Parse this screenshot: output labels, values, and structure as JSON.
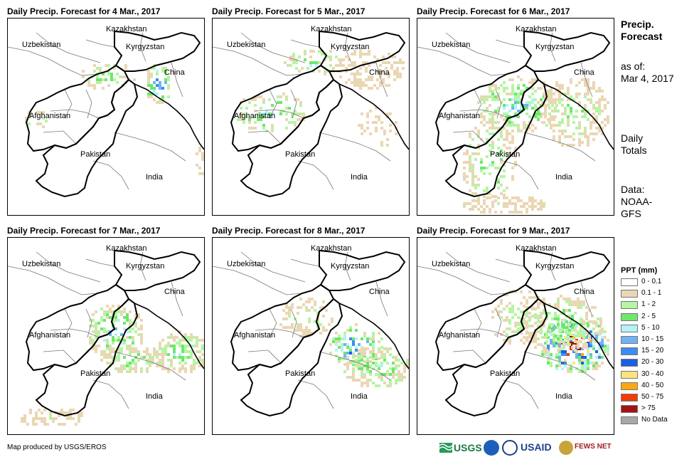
{
  "panels": [
    {
      "title": "Daily Precip. Forecast for 4 Mar., 2017"
    },
    {
      "title": "Daily Precip. Forecast for 5 Mar., 2017"
    },
    {
      "title": "Daily Precip. Forecast for 6 Mar., 2017"
    },
    {
      "title": "Daily Precip. Forecast for 7 Mar., 2017"
    },
    {
      "title": "Daily Precip. Forecast for 8 Mar., 2017"
    },
    {
      "title": "Daily Precip. Forecast for 9 Mar., 2017"
    }
  ],
  "map_labels": {
    "kazakhstan": "Kazakhstan",
    "uzbekistan": "Uzbekistan",
    "kyrgyzstan": "Kyrgyzstan",
    "china": "China",
    "afghanistan": "Afghanistan",
    "pakistan": "Pakistan",
    "india": "India"
  },
  "side": {
    "heading_line1": "Precip.",
    "heading_line2": "Forecast",
    "asof_line1": "as of:",
    "asof_line2": "Mar 4, 2017",
    "totals_line1": "Daily",
    "totals_line2": "Totals",
    "data_line1": "Data:",
    "data_line2": "NOAA-",
    "data_line3": "GFS"
  },
  "legend": {
    "title": "PPT (mm)",
    "items": [
      {
        "label": "0 - 0.1",
        "color": "#ffffff"
      },
      {
        "label": "0.1 - 1",
        "color": "#ead7b4"
      },
      {
        "label": "1 - 2",
        "color": "#b5f5a4"
      },
      {
        "label": "2 - 5",
        "color": "#6ee86a"
      },
      {
        "label": "5 - 10",
        "color": "#b4f2f6"
      },
      {
        "label": "10 - 15",
        "color": "#6fb4f2"
      },
      {
        "label": "15 - 20",
        "color": "#3b8df0"
      },
      {
        "label": "20 - 30",
        "color": "#1c5fe0"
      },
      {
        "label": "30 - 40",
        "color": "#fde27e"
      },
      {
        "label": "40 - 50",
        "color": "#fca80e"
      },
      {
        "label": "50 - 75",
        "color": "#f23b08"
      },
      {
        "label": "> 75",
        "color": "#a31212"
      },
      {
        "label": "No Data",
        "color": "#a8a8a8"
      }
    ]
  },
  "credit": "Map produced by USGS/EROS",
  "logos": {
    "usgs": "USGS",
    "usaid": "USAID",
    "fewsnet": "FEWS NET"
  }
}
